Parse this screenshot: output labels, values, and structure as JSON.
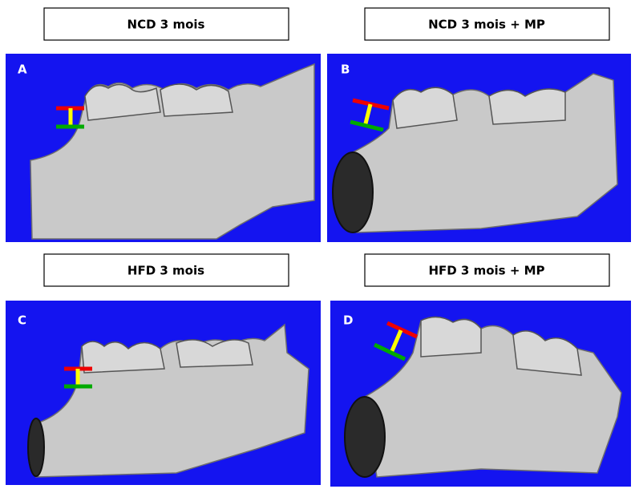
{
  "panels": [
    {
      "header": "NCD 3 mois",
      "letter": "A"
    },
    {
      "header": "NCD 3 mois + MP",
      "letter": "B"
    },
    {
      "header": "HFD 3 mois",
      "letter": "C"
    },
    {
      "header": "HFD 3 mois + MP",
      "letter": "D"
    }
  ]
}
